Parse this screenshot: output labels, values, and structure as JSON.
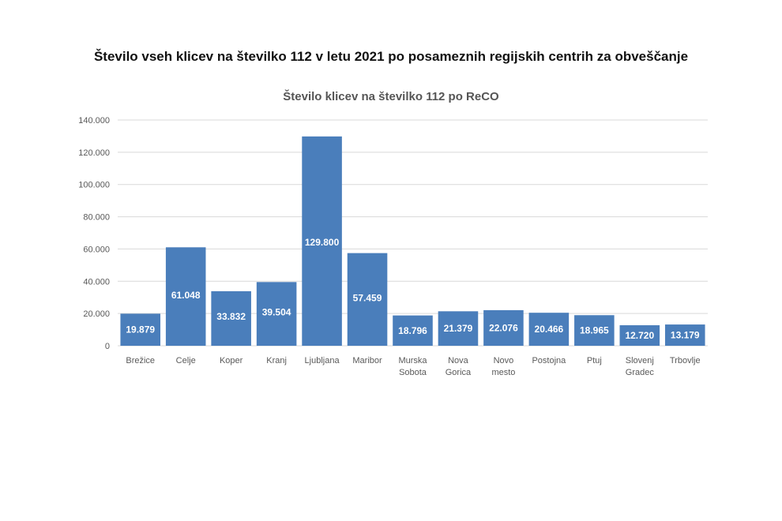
{
  "page": {
    "title": "Število vseh klicev na številko 112 v letu 2021 po posameznih regijskih centrih za obveščanje"
  },
  "chart_data": {
    "type": "bar",
    "title": "Število klicev na številko 112 po ReCO",
    "xlabel": "",
    "ylabel": "",
    "ylim": [
      0,
      140000
    ],
    "yticks": [
      0,
      20000,
      40000,
      60000,
      80000,
      100000,
      120000,
      140000
    ],
    "ytick_labels": [
      "0",
      "20.000",
      "40.000",
      "60.000",
      "80.000",
      "100.000",
      "120.000",
      "140.000"
    ],
    "grid": true,
    "legend": "none",
    "categories": [
      "Brežice",
      "Celje",
      "Koper",
      "Kranj",
      "Ljubljana",
      "Maribor",
      "Murska Sobota",
      "Nova Gorica",
      "Novo mesto",
      "Postojna",
      "Ptuj",
      "Slovenj Gradec",
      "Trbovlje"
    ],
    "values": [
      19879,
      61048,
      33832,
      39504,
      129800,
      57459,
      18796,
      21379,
      22076,
      20466,
      18965,
      12720,
      13179
    ],
    "data_labels": [
      "19.879",
      "61.048",
      "33.832",
      "39.504",
      "129.800",
      "57.459",
      "18.796",
      "21.379",
      "22.076",
      "20.466",
      "18.965",
      "12.720",
      "13.179"
    ],
    "colors": {
      "bar": "#4a7ebb",
      "grid": "#d9d9d9",
      "axis_text": "#595959",
      "label": "#ffffff"
    }
  }
}
